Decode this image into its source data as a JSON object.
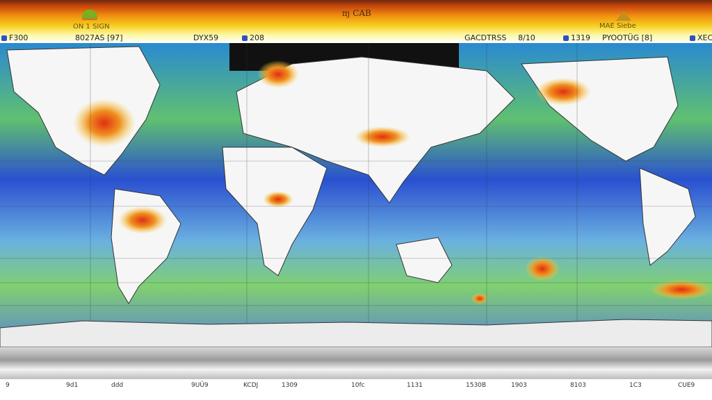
{
  "title": "ɱ CAB",
  "header": {
    "upper_labels": [
      "ON 1 SIGN",
      "MAE  Siebe"
    ],
    "labels": [
      "F300",
      "8027AS [97]",
      "DYX59",
      "208",
      "GACDTRSS",
      "8/10",
      "1319",
      "PYOOTÜG [8]",
      "XEC"
    ]
  },
  "colors": {
    "ocean_deep": "#2048d0",
    "ocean_mid": "#5aa0e0",
    "ocean_shallow": "#7cd060",
    "land": "#f6f6f6",
    "hotspot": "#f07010",
    "polar": "#c8c8c8"
  },
  "axis": {
    "ticks": [
      "9",
      "9d1",
      "ddd",
      "9UÜ9",
      "KCDJ",
      "1309",
      "10fc",
      "1131",
      "1530B",
      "1903",
      "8103",
      "1C3",
      "CUE9"
    ]
  }
}
